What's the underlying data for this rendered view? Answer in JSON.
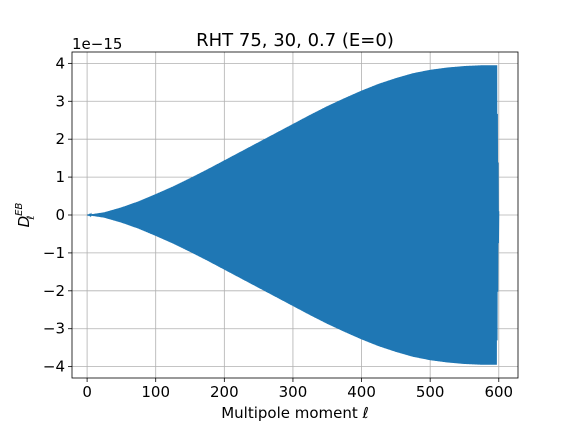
{
  "chart_data": {
    "type": "line",
    "title": "RHT 75, 30, 0.7 (E=0)",
    "xlabel": "Multipole moment ℓ",
    "ylabel_main": "D",
    "ylabel_sub": "ℓ",
    "ylabel_sup": "EB",
    "y_offset_text": "1e−15",
    "xlim": [
      -22,
      628
    ],
    "ylim": [
      -4.3,
      4.3
    ],
    "grid": true,
    "series_color": "#1f77b4",
    "x_ticks": [
      {
        "value": 0,
        "label": "0"
      },
      {
        "value": 100,
        "label": "100"
      },
      {
        "value": 200,
        "label": "200"
      },
      {
        "value": 300,
        "label": "300"
      },
      {
        "value": 400,
        "label": "400"
      },
      {
        "value": 500,
        "label": "500"
      },
      {
        "value": 600,
        "label": "600"
      }
    ],
    "y_ticks": [
      {
        "value": 4,
        "label": "4"
      },
      {
        "value": 3,
        "label": "3"
      },
      {
        "value": 2,
        "label": "2"
      },
      {
        "value": 1,
        "label": "1"
      },
      {
        "value": 0,
        "label": "0"
      },
      {
        "value": -1,
        "label": "−1"
      },
      {
        "value": -2,
        "label": "−2"
      },
      {
        "value": -3,
        "label": "−3"
      },
      {
        "value": -4,
        "label": "−4"
      }
    ],
    "series": [
      {
        "style": "oscillating",
        "x_start": 0,
        "x_end": 600,
        "envelope_x": [
          0,
          25,
          50,
          75,
          100,
          125,
          150,
          175,
          200,
          225,
          250,
          275,
          300,
          325,
          350,
          375,
          400,
          425,
          450,
          475,
          500,
          525,
          550,
          575,
          597,
          600
        ],
        "envelope_y": [
          0,
          0.07,
          0.2,
          0.36,
          0.55,
          0.75,
          0.97,
          1.2,
          1.44,
          1.68,
          1.92,
          2.16,
          2.4,
          2.64,
          2.87,
          3.08,
          3.28,
          3.46,
          3.61,
          3.74,
          3.83,
          3.89,
          3.93,
          3.95,
          3.95,
          0.1
        ]
      }
    ]
  }
}
